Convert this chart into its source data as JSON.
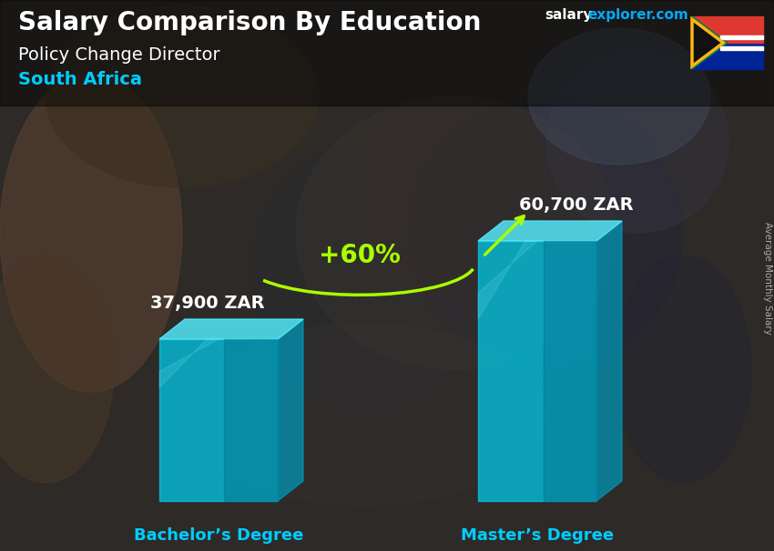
{
  "title_main": "Salary Comparison By Education",
  "title_sub": "Policy Change Director",
  "title_country": "South Africa",
  "watermark_salary": "salary",
  "watermark_rest": "explorer.com",
  "ylabel": "Average Monthly Salary",
  "categories": [
    "Bachelor’s Degree",
    "Master’s Degree"
  ],
  "values": [
    37900,
    60700
  ],
  "value_labels": [
    "37,900 ZAR",
    "60,700 ZAR"
  ],
  "pct_change": "+60%",
  "bar_color": "#00cfee",
  "bar_color_side": "#0099bb",
  "bar_color_top": "#55eeff",
  "bar_alpha": 0.72,
  "title_color": "#ffffff",
  "subtitle_color": "#ffffff",
  "country_color": "#00ccff",
  "label_color": "#ffffff",
  "category_color": "#00ccff",
  "pct_color": "#aaff00",
  "watermark_salary_color": "#ffffff",
  "watermark_explorer_color": "#00aaff",
  "side_label_color": "#aaaaaa",
  "bg_dark": "#2a2a2a",
  "bg_mid": "#3a3a3a"
}
